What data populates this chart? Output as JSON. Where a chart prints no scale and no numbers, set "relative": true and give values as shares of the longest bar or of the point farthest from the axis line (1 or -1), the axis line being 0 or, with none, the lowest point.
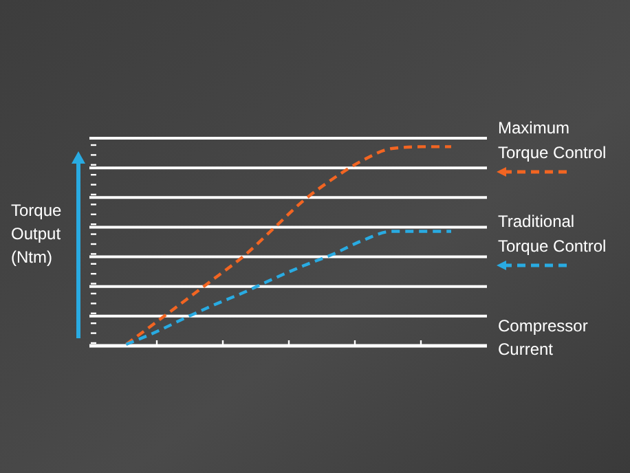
{
  "chart_data": {
    "type": "line",
    "relative": true,
    "ylabel": "Torque Output (Ntm)",
    "xlabel": "Compressor Current",
    "categories": [
      null,
      null,
      null,
      null,
      null,
      null,
      null,
      null,
      null,
      null,
      null,
      null
    ],
    "grid": "y",
    "legend": "right",
    "line_style": "dashed",
    "series": [
      {
        "name": "Maximum Torque Control",
        "color": "#f26522",
        "values": [
          0.007,
          0.117,
          0.228,
          0.34,
          0.453,
          0.591,
          0.729,
          0.839,
          0.931,
          0.991,
          1,
          1
        ]
      },
      {
        "name": "Traditional Torque Control",
        "color": "#29abe2",
        "values": [
          0.007,
          0.069,
          0.14,
          0.207,
          0.269,
          0.338,
          0.402,
          0.46,
          0.529,
          0.575,
          0.575,
          0.575
        ]
      }
    ]
  }
}
